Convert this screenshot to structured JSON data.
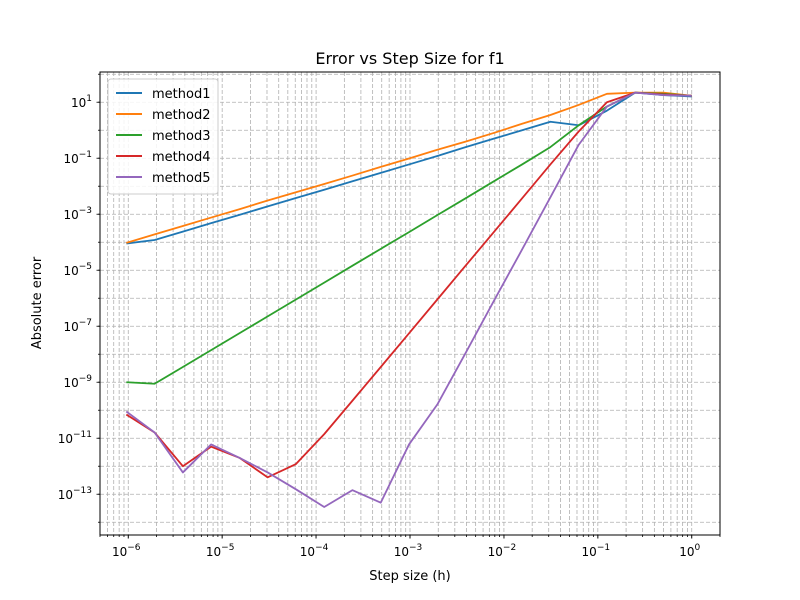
{
  "chart_data": {
    "type": "line",
    "title": "Error vs Step Size for f1",
    "xlabel": "Step size (h)",
    "ylabel": "Absolute error",
    "xscale": "log",
    "yscale": "log",
    "xlim": [
      5e-07,
      2
    ],
    "ylim": [
      3.5e-15,
      120
    ],
    "grid": true,
    "grid_style": "dashed, major and minor",
    "legend_position": "top-left",
    "x_ticks": [
      {
        "value": 1e-06,
        "mantissa": "10",
        "exponent": "−6"
      },
      {
        "value": 1e-05,
        "mantissa": "10",
        "exponent": "−5"
      },
      {
        "value": 0.0001,
        "mantissa": "10",
        "exponent": "−4"
      },
      {
        "value": 0.001,
        "mantissa": "10",
        "exponent": "−3"
      },
      {
        "value": 0.01,
        "mantissa": "10",
        "exponent": "−2"
      },
      {
        "value": 0.1,
        "mantissa": "10",
        "exponent": "−1"
      },
      {
        "value": 1,
        "mantissa": "10",
        "exponent": "0"
      }
    ],
    "y_ticks": [
      {
        "value": 10,
        "mantissa": "10",
        "exponent": "1"
      },
      {
        "value": 0.1,
        "mantissa": "10",
        "exponent": "−1"
      },
      {
        "value": 0.001,
        "mantissa": "10",
        "exponent": "−3"
      },
      {
        "value": 1e-05,
        "mantissa": "10",
        "exponent": "−5"
      },
      {
        "value": 1e-07,
        "mantissa": "10",
        "exponent": "−7"
      },
      {
        "value": 1e-09,
        "mantissa": "10",
        "exponent": "−9"
      },
      {
        "value": 1e-11,
        "mantissa": "10",
        "exponent": "−11"
      },
      {
        "value": 1e-13,
        "mantissa": "10",
        "exponent": "−13"
      }
    ],
    "x": [
      1,
      0.5,
      0.25,
      0.125,
      0.0625,
      0.03125,
      0.015625,
      0.0078125,
      0.00390625,
      0.001953125,
      0.0009765625,
      0.00048828125,
      0.000244140625,
      0.0001220703125,
      6.103515625e-05,
      3.0517578125e-05,
      1.52587890625e-05,
      7.62939453125e-06,
      3.814697265625e-06,
      1.9073486328125e-06,
      9.5367431640625e-07
    ],
    "series": [
      {
        "name": "method1",
        "color": "#1f77b4",
        "values": [
          16,
          18,
          22,
          5,
          1.5,
          2,
          1,
          0.5,
          0.25,
          0.12,
          0.06,
          0.03,
          0.015,
          0.0075,
          0.0038,
          0.0019,
          0.00095,
          0.00048,
          0.00024,
          0.00012,
          9e-05
        ]
      },
      {
        "name": "method2",
        "color": "#ff7f0e",
        "values": [
          17,
          22,
          22,
          20,
          8,
          3.5,
          1.7,
          0.8,
          0.39,
          0.2,
          0.098,
          0.049,
          0.024,
          0.012,
          0.0061,
          0.0031,
          0.0015,
          0.00076,
          0.00038,
          0.00019,
          9.5e-05
        ]
      },
      {
        "name": "method3",
        "color": "#2ca02c",
        "values": [
          17,
          20,
          22,
          7,
          1.5,
          0.25,
          0.06,
          0.015,
          0.0037,
          0.00093,
          0.00023,
          5.8e-05,
          1.45e-05,
          3.6e-06,
          9e-07,
          2.25e-07,
          5.6e-08,
          1.4e-08,
          3.5e-09,
          8.8e-10,
          1e-09
        ]
      },
      {
        "name": "method4",
        "color": "#d62728",
        "values": [
          17,
          19,
          22,
          10,
          0.9,
          0.06,
          0.0037,
          0.00023,
          1.45e-05,
          9e-07,
          5.6e-08,
          3.5e-09,
          2.2e-10,
          1.4e-11,
          1.2e-12,
          4e-13,
          2e-12,
          5e-12,
          1e-12,
          1.6e-11,
          7e-11
        ]
      },
      {
        "name": "method5",
        "color": "#9467bd",
        "values": [
          17,
          18,
          22,
          7,
          0.3,
          0.004,
          5.5e-05,
          8e-07,
          1.1e-08,
          1.6e-10,
          6e-12,
          5e-14,
          1.4e-13,
          3.5e-14,
          1.5e-13,
          6e-13,
          2e-12,
          6e-12,
          6e-13,
          1.6e-11,
          9e-11
        ]
      }
    ]
  }
}
